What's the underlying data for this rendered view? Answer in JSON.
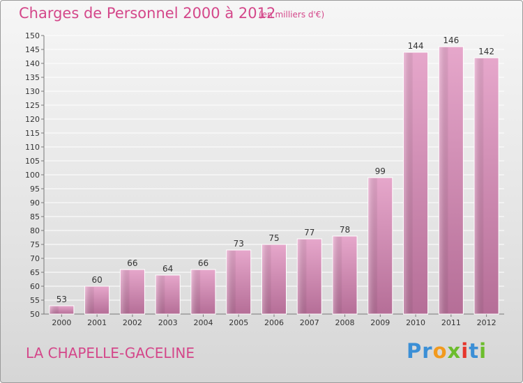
{
  "header": {
    "title": "Charges de Personnel 2000 à 2012",
    "subtitle": "(en milliers d'€)"
  },
  "footer": {
    "location": "LA CHAPELLE-GACELINE",
    "brand": "Proxiti",
    "brand_letters": [
      "P",
      "r",
      "o",
      "x",
      "i",
      "t",
      "i"
    ],
    "brand_colors": [
      "#3b8fd6",
      "#3b8fd6",
      "#f29a1e",
      "#6cbd2c",
      "#e6352b",
      "#3b8fd6",
      "#6cbd2c"
    ]
  },
  "chart_data": {
    "type": "bar",
    "title": "Charges de Personnel 2000 à 2012",
    "subtitle": "(en milliers d'€)",
    "categories": [
      "2000",
      "2001",
      "2002",
      "2003",
      "2004",
      "2005",
      "2006",
      "2007",
      "2008",
      "2009",
      "2010",
      "2011",
      "2012"
    ],
    "values": [
      53,
      60,
      66,
      64,
      66,
      73,
      75,
      77,
      78,
      99,
      144,
      146,
      142
    ],
    "ylim": [
      50,
      150
    ],
    "ytick_step": 5,
    "grid": true,
    "data_labels": true,
    "bar_color": "#d98bb5",
    "bar_color_light": "#e8b0d0",
    "bar_color_dark": "#b06d92"
  }
}
